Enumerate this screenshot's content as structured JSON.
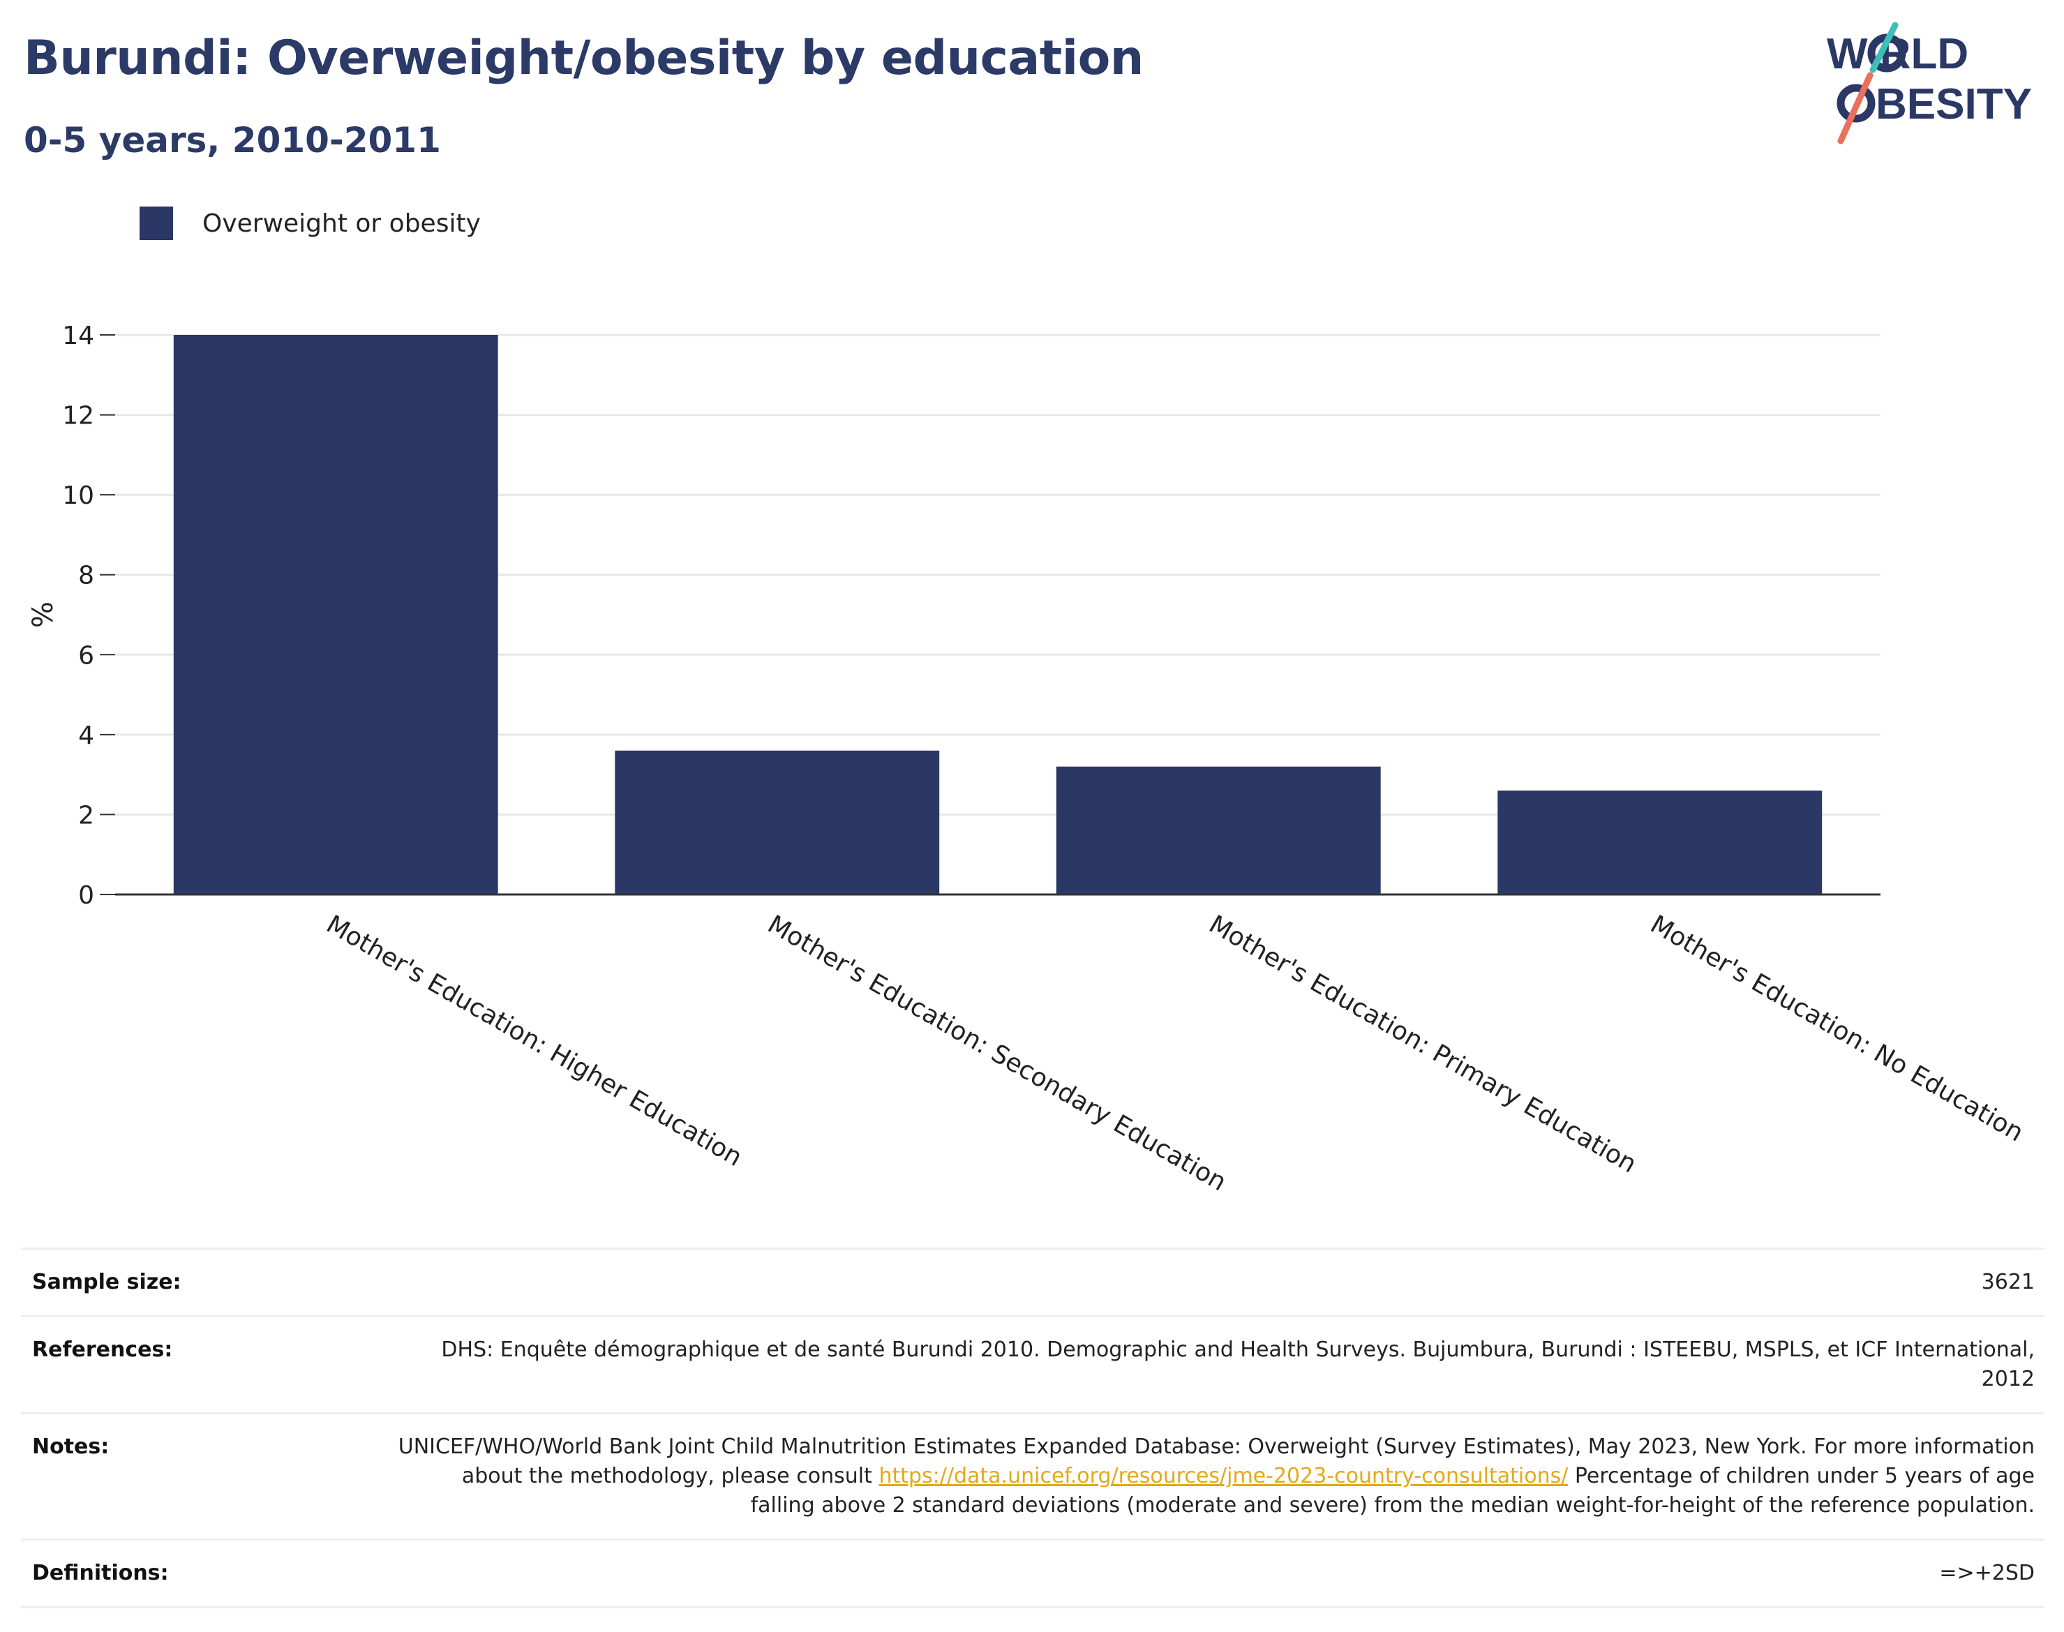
{
  "header": {
    "title": "Burundi: Overweight/obesity by education",
    "subtitle": "0-5 years, 2010-2011"
  },
  "logo": {
    "line1": "W RLD",
    "line2": "BESITY",
    "text": "WORLD OBESITY",
    "colors": {
      "navy": "#2b3764",
      "teal": "#3dbfb8",
      "coral": "#e8705c"
    }
  },
  "legend": {
    "label": "Overweight or obesity"
  },
  "colors": {
    "bar": "#2b3764",
    "grid": "#e8e8e8",
    "axis": "#333333",
    "link": "#e6a817"
  },
  "chart_data": {
    "type": "bar",
    "title": "Burundi: Overweight/obesity by education",
    "subtitle": "0-5 years, 2010-2011",
    "ylabel": "%",
    "xlabel": "",
    "ylim": [
      0,
      14
    ],
    "yticks": [
      0,
      2,
      4,
      6,
      8,
      10,
      12,
      14
    ],
    "grid": true,
    "legend_position": "top-left",
    "categories": [
      "Mother's Education: Higher Education",
      "Mother's Education: Secondary Education",
      "Mother's Education: Primary Education",
      "Mother's Education: No Education"
    ],
    "series": [
      {
        "name": "Overweight or obesity",
        "values": [
          14.0,
          3.6,
          3.2,
          2.6
        ]
      }
    ]
  },
  "info": {
    "sample_size_label": "Sample size:",
    "sample_size_value": "3621",
    "references_label": "References:",
    "references_value": "DHS: Enquête démographique et de santé Burundi 2010. Demographic and Health Surveys. Bujumbura, Burundi : ISTEEBU, MSPLS, et ICF International, 2012",
    "notes_label": "Notes:",
    "notes_text_1": "UNICEF/WHO/World Bank Joint Child Malnutrition Estimates Expanded Database: Overweight (Survey Estimates), May 2023, New York. For more information about the methodology, please consult ",
    "notes_link": "https://data.unicef.org/resources/jme-2023-country-consultations/",
    "notes_text_2": " Percentage of children under 5 years of age falling above 2 standard deviations (moderate and severe) from the median weight-for-height of the reference population.",
    "definitions_label": "Definitions:",
    "definitions_value": "=>+2SD"
  }
}
